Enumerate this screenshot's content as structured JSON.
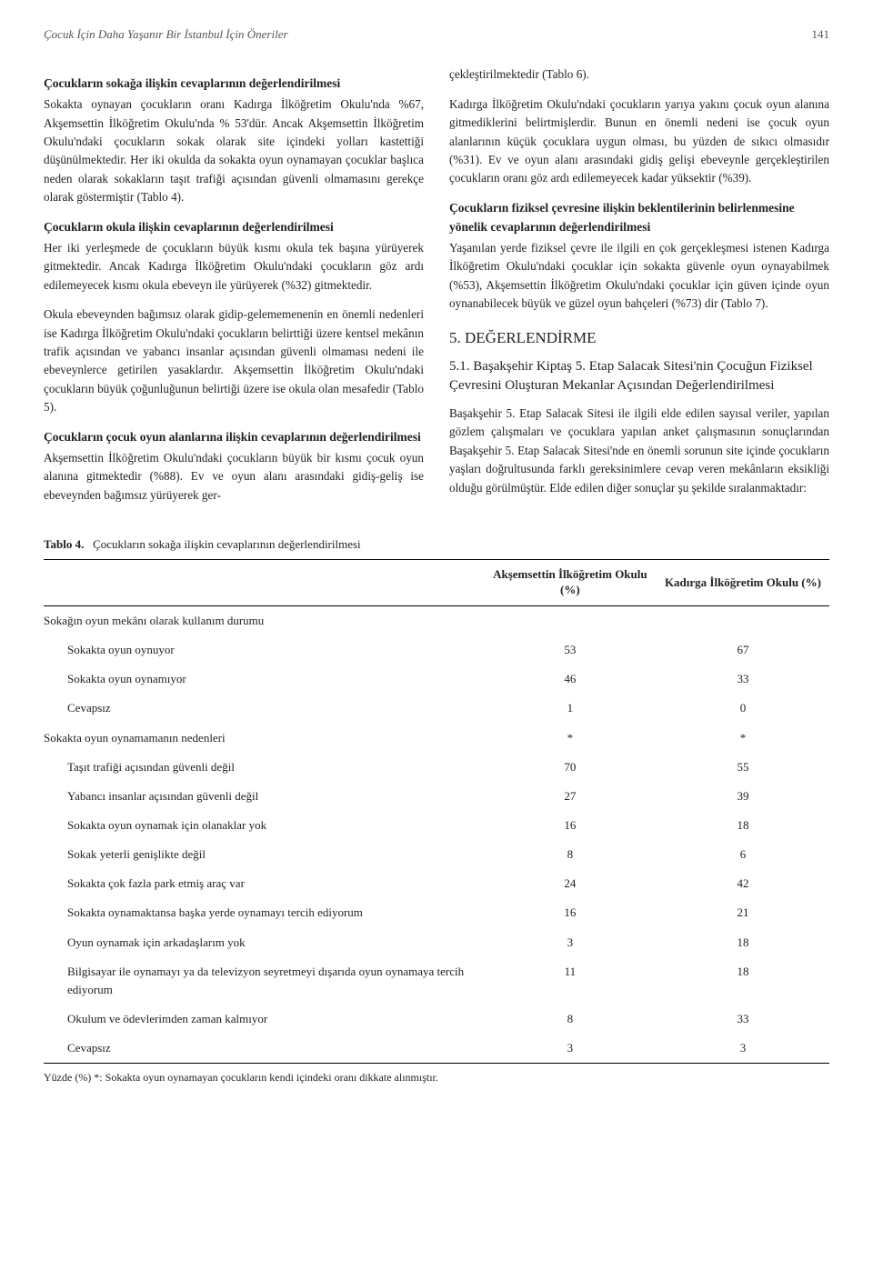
{
  "header": {
    "title": "Çocuk İçin Daha Yaşanır Bir İstanbul İçin Öneriler",
    "page_number": "141"
  },
  "columns": {
    "left": {
      "h1": "Çocukların sokağa ilişkin cevaplarının değerlendirilmesi",
      "p1": "Sokakta oynayan çocukların oranı Kadırga İlköğretim Okulu'nda %67, Akşemsettin İlköğretim Okulu'nda % 53'dür. Ancak Akşemsettin İlköğretim Okulu'ndaki çocukların sokak olarak site içindeki yolları kastettiği düşünülmektedir. Her iki okulda da sokakta oyun oynamayan çocuklar başlıca neden olarak sokakların taşıt trafiği açısından güvenli olmamasını gerekçe olarak göstermiştir (Tablo 4).",
      "h2": "Çocukların okula ilişkin cevaplarının değerlendirilmesi",
      "p2": "Her iki yerleşmede de çocukların büyük kısmı okula tek başına yürüyerek gitmektedir. Ancak Kadırga İlköğretim Okulu'ndaki çocukların göz ardı edilemeyecek kısmı okula ebeveyn ile yürüyerek (%32) gitmektedir.",
      "p3": "Okula ebeveynden bağımsız olarak gidip-gelememenenin en önemli nedenleri ise Kadırga İlköğretim Okulu'ndaki çocukların belirttiği üzere kentsel mekânın trafik açısından ve yabancı insanlar açısından güvenli olmaması nedeni ile ebeveynlerce getirilen yasaklardır. Akşemsettin İlköğretim Okulu'ndaki çocukların büyük çoğunluğunun belirtiği üzere ise okula olan mesafedir (Tablo 5).",
      "h3": "Çocukların çocuk oyun alanlarına ilişkin cevaplarının değerlendirilmesi",
      "p4": "Akşemsettin İlköğretim Okulu'ndaki çocukların büyük bir kısmı çocuk oyun alanına gitmektedir (%88). Ev ve oyun alanı arasındaki gidiş-geliş ise ebeveynden bağımsız yürüyerek ger-"
    },
    "right": {
      "p1": "çekleştirilmektedir (Tablo 6).",
      "p2": "Kadırga İlköğretim Okulu'ndaki çocukların yarıya yakını çocuk oyun alanına gitmediklerini belirtmişlerdir. Bunun en önemli nedeni ise çocuk oyun alanlarının küçük çocuklara uygun olması, bu yüzden de sıkıcı olmasıdır (%31). Ev ve oyun alanı arasındaki gidiş gelişi ebeveynle gerçekleştirilen çocukların oranı göz ardı edilemeyecek kadar yüksektir (%39).",
      "h1": "Çocukların fiziksel çevresine ilişkin beklentilerinin belirlenmesine yönelik cevaplarının değerlendirilmesi",
      "p3": "Yaşanılan yerde fiziksel çevre ile ilgili en çok gerçekleşmesi istenen Kadırga İlköğretim Okulu'ndaki çocuklar için sokakta güvenle oyun oynayabilmek (%53), Akşemsettin İlköğretim Okulu'ndaki çocuklar için güven içinde oyun oynanabilecek büyük ve güzel oyun bahçeleri (%73) dir (Tablo 7).",
      "h_eval": "5. DEĞERLENDİRME",
      "h_sub": "5.1. Başakşehir Kiptaş 5. Etap Salacak Sitesi'nin Çocuğun Fiziksel Çevresini Oluşturan Mekanlar Açısından Değerlendirilmesi",
      "p4": "Başakşehir 5. Etap Salacak Sitesi ile ilgili elde edilen sayısal veriler, yapılan gözlem çalışmaları ve çocuklara yapılan anket çalışmasının sonuçlarından Başakşehir 5. Etap Salacak Sitesi'nde en önemli sorunun site içinde çocukların yaşları doğrultusunda farklı gereksinimlere cevap veren mekânların eksikliği olduğu görülmüştür. Elde edilen diğer sonuçlar şu şekilde sıralanmaktadır:"
    }
  },
  "table": {
    "caption_label": "Tablo 4.",
    "caption_text": "Çocukların sokağa ilişkin cevaplarının değerlendirilmesi",
    "col_headers": [
      "",
      "Akşemsettin İlköğretim Okulu (%)",
      "Kadırga İlköğretim Okulu (%)"
    ],
    "rows": [
      {
        "type": "group",
        "label": "Sokağın oyun mekânı olarak kullanım durumu",
        "c1": "",
        "c2": ""
      },
      {
        "type": "sub",
        "label": "Sokakta oyun oynuyor",
        "c1": "53",
        "c2": "67"
      },
      {
        "type": "sub",
        "label": "Sokakta oyun oynamıyor",
        "c1": "46",
        "c2": "33"
      },
      {
        "type": "sub",
        "label": "Cevapsız",
        "c1": "1",
        "c2": "0"
      },
      {
        "type": "group",
        "label": "Sokakta oyun oynamamanın nedenleri",
        "c1": "*",
        "c2": "*"
      },
      {
        "type": "sub",
        "label": "Taşıt trafiği açısından güvenli değil",
        "c1": "70",
        "c2": "55"
      },
      {
        "type": "sub",
        "label": "Yabancı insanlar açısından güvenli değil",
        "c1": "27",
        "c2": "39"
      },
      {
        "type": "sub",
        "label": "Sokakta oyun oynamak için olanaklar yok",
        "c1": "16",
        "c2": "18"
      },
      {
        "type": "sub",
        "label": "Sokak yeterli genişlikte değil",
        "c1": "8",
        "c2": "6"
      },
      {
        "type": "sub",
        "label": "Sokakta çok fazla park etmiş araç var",
        "c1": "24",
        "c2": "42"
      },
      {
        "type": "sub",
        "label": "Sokakta oynamaktansa başka yerde oynamayı tercih ediyorum",
        "c1": "16",
        "c2": "21"
      },
      {
        "type": "sub",
        "label": "Oyun oynamak için arkadaşlarım yok",
        "c1": "3",
        "c2": "18"
      },
      {
        "type": "sub",
        "label": "Bilgisayar ile oynamayı ya da televizyon seyretmeyi dışarıda oyun oynamaya tercih ediyorum",
        "c1": "11",
        "c2": "18"
      },
      {
        "type": "sub",
        "label": "Okulum ve ödevlerimden zaman kalmıyor",
        "c1": "8",
        "c2": "33"
      },
      {
        "type": "sub",
        "label": "Cevapsız",
        "c1": "3",
        "c2": "3"
      }
    ],
    "footnote": "Yüzde (%) *: Sokakta oyun oynamayan çocukların kendi içindeki oranı dikkate alınmıştır."
  }
}
